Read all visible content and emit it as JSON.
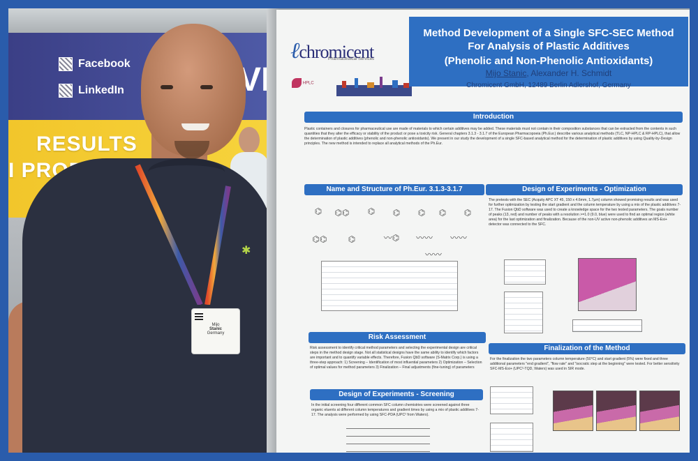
{
  "background": {
    "social_links": [
      "Facebook",
      "LinkedIn"
    ],
    "banner_text_1": "RESULTS",
    "banner_text_2": "I PRODUCI",
    "banner_letter": "VI"
  },
  "badge": {
    "line1": "Mijo",
    "line2": "Stanic",
    "line3": "Germany"
  },
  "poster": {
    "logo_text": "chromicent",
    "logo_sub": "Pharmaceutical Services",
    "hplc_label": "HPLC",
    "title_line1": "Method Development of a Single SFC-SEC Method",
    "title_line2": "For Analysis of Plastic Additives",
    "title_line3": "(Phenolic and Non-Phenolic Antioxidants)",
    "author_main": "Mijo Stanic",
    "author_rest": ", Alexander H. Schmidt",
    "affiliation": "Chromicent GmbH, 12489 Berlin Adlershof, Germany",
    "sections": {
      "introduction": "Introduction",
      "names": "Name and Structure of Ph.Eur. 3.1.3-3.1.7",
      "doe_opt": "Design of Experiments - Optimization",
      "risk": "Risk Assessment",
      "finalization": "Finalization of the Method",
      "doe_screen": "Design of Experiments - Screening"
    },
    "intro_text": "Plastic containers and closures for pharmaceutical use are made of materials to which certain additives may be added. These materials must not contain in their composition substances that can be extracted from the contents in such quantities that they alter the efficacy or stability of the product or pose a toxicity risk. General chapters 3.1.3 - 3.1.7 of the European Pharmacopoeia (Ph.Eur.) describe various analytical methods (TLC, NP-HPLC & RP-HPLC), that allow the determination of plastic additives (phenolic and non-phenolic antioxidants). We present in our study the development of a single SFC-based analytical method for the determination of plastic additives by using Quality-by-Design principles. The new method is intended to replace all analytical methods of the Ph.Eur.",
    "doe_opt_text": "The pretests with the SEC (Acquity APC XT 45, 150 x 4.6mm, 1.7µm) column showed promising results and was used for further optimization by testing the start gradient and the column temperature by using a mix of the plastic additives 7-17. The Fusion QbD software was used to create a knowledge space for the two tested parameters. The goals number of peaks (13, red) and number of peaks with a resolution >=1.0 (9.0, blue) were used to find an optimal region (white area) for the last optimization and finalization. Because of the non-UV active non-phenolic additives an MS-Esi+ detector was connected to the SFC.",
    "risk_text": "Risk assessment to identify critical method parameters and selecting the experimental design are critical steps in the method design stage. Not all statistical designs have the same ability to identify which factors are important and to quantify variable effects. Therefore, Fusion QbD software (S-Matrix Corp.) is using a three-step approach: 1) Screening – Identification of most influential parameters 2) Optimization – Selection of optimal values for method parameters 3) Finalization – Final adjustments (fine-tuning) of parameters",
    "final_text": "For the finalization the two parameters column temperature (50°C) and start gradient (5%) were fixed and three additional parameters \"end gradient\", \"flow rate\" and \"isocratic step at the beginning\" were tested. For better sensitivity SFC-MS-Esi+ (UPC²-TQD, Waters) was used in SIR mode.",
    "screen_text": "In the initial screening four different common SFC column chemistries were screened against three organic eluents at different column temperatures and gradient times by using a mix of plastic additives 7-17. The analysis were performed by using SFC-PDA (UPC² from Waters)."
  },
  "colors": {
    "frame": "#2a5cab",
    "poster_header": "#2e6fc2",
    "shirt": "#2b3040"
  }
}
